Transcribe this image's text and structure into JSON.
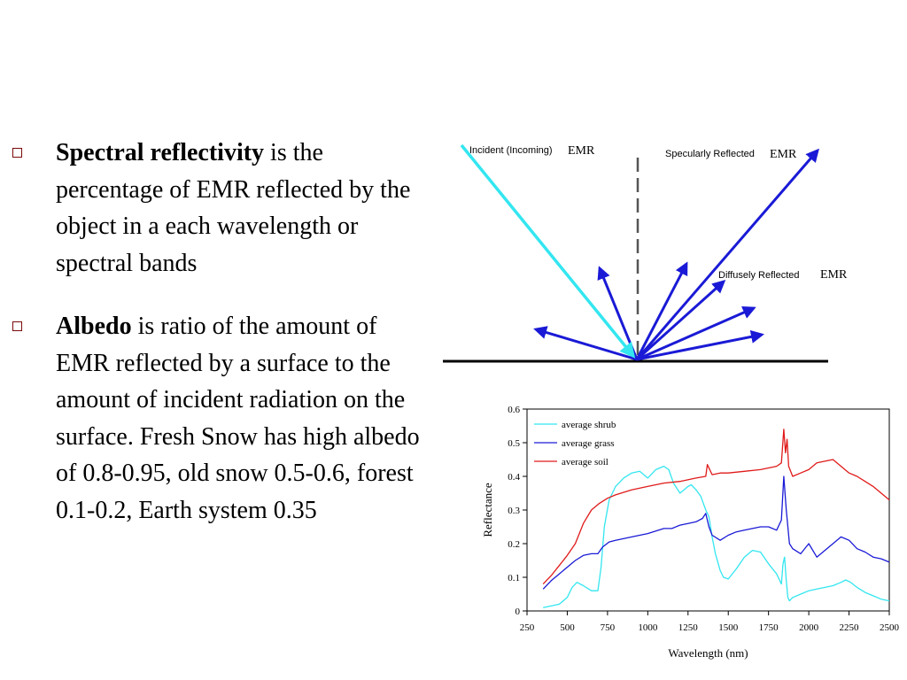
{
  "bullets": [
    {
      "term": "Spectral reflectivity",
      "text": " is the percentage of EMR reflected by the object in a each wavelength or spectral bands"
    },
    {
      "term": "Albedo",
      "text": " is ratio of the amount of EMR reflected by a surface to the amount of incident radiation on the surface. Fresh Snow has high albedo of 0.8-0.95, old snow 0.5-0.6, forest 0.1-0.2, Earth system 0.35"
    }
  ],
  "diagram": {
    "incident_label": "Incident (Incoming)",
    "specular_label": "Specularly Reflected",
    "diffuse_label": "Diffusely Reflected",
    "emr": "EMR",
    "colors": {
      "incident": "#33e6f0",
      "reflected": "#1a1ad6"
    }
  },
  "chart_data": {
    "type": "line",
    "xlabel": "Wavelength (nm)",
    "ylabel": "Reflectance",
    "xlim": [
      250,
      2500
    ],
    "ylim": [
      0,
      0.6
    ],
    "xticks": [
      250,
      500,
      750,
      1000,
      1250,
      1500,
      1750,
      2000,
      2250,
      2500
    ],
    "yticks": [
      0,
      0.1,
      0.2,
      0.3,
      0.4,
      0.5,
      0.6
    ],
    "ytick_labels": [
      "0",
      "0.1",
      "0.2",
      "0.3",
      "0.4",
      "0.5",
      "0.6"
    ],
    "legend_position": "top-left",
    "grid": false,
    "series": [
      {
        "name": "average shrub",
        "color": "#33e6f0",
        "x": [
          350,
          450,
          500,
          530,
          560,
          600,
          650,
          690,
          710,
          730,
          760,
          800,
          850,
          900,
          950,
          1000,
          1050,
          1100,
          1130,
          1160,
          1200,
          1250,
          1270,
          1300,
          1330,
          1360,
          1380,
          1400,
          1420,
          1450,
          1470,
          1500,
          1550,
          1600,
          1650,
          1700,
          1750,
          1800,
          1830,
          1840,
          1850,
          1860,
          1870,
          1880,
          1900,
          1950,
          2000,
          2050,
          2100,
          2150,
          2200,
          2230,
          2260,
          2300,
          2350,
          2400,
          2450,
          2500
        ],
        "y": [
          0.01,
          0.02,
          0.04,
          0.07,
          0.085,
          0.075,
          0.06,
          0.06,
          0.13,
          0.25,
          0.33,
          0.37,
          0.395,
          0.41,
          0.415,
          0.395,
          0.42,
          0.43,
          0.42,
          0.38,
          0.35,
          0.37,
          0.375,
          0.36,
          0.34,
          0.3,
          0.28,
          0.22,
          0.17,
          0.12,
          0.1,
          0.095,
          0.125,
          0.16,
          0.18,
          0.175,
          0.14,
          0.11,
          0.08,
          0.14,
          0.16,
          0.09,
          0.04,
          0.03,
          0.04,
          0.05,
          0.06,
          0.065,
          0.07,
          0.075,
          0.085,
          0.092,
          0.085,
          0.07,
          0.055,
          0.045,
          0.035,
          0.03
        ]
      },
      {
        "name": "average grass",
        "color": "#1a1ad6",
        "x": [
          350,
          400,
          450,
          500,
          550,
          600,
          650,
          690,
          720,
          760,
          800,
          900,
          1000,
          1100,
          1150,
          1200,
          1250,
          1300,
          1340,
          1360,
          1380,
          1400,
          1450,
          1500,
          1550,
          1600,
          1650,
          1700,
          1750,
          1800,
          1830,
          1845,
          1860,
          1880,
          1900,
          1950,
          2000,
          2050,
          2100,
          2150,
          2200,
          2250,
          2300,
          2350,
          2400,
          2450,
          2500
        ],
        "y": [
          0.065,
          0.09,
          0.11,
          0.13,
          0.15,
          0.165,
          0.17,
          0.17,
          0.19,
          0.205,
          0.21,
          0.22,
          0.23,
          0.245,
          0.245,
          0.255,
          0.26,
          0.265,
          0.275,
          0.29,
          0.25,
          0.225,
          0.21,
          0.225,
          0.235,
          0.24,
          0.245,
          0.25,
          0.25,
          0.24,
          0.27,
          0.4,
          0.3,
          0.2,
          0.185,
          0.17,
          0.2,
          0.16,
          0.18,
          0.2,
          0.22,
          0.21,
          0.185,
          0.175,
          0.16,
          0.155,
          0.145
        ]
      },
      {
        "name": "average soil",
        "color": "#e01a1a",
        "x": [
          350,
          400,
          450,
          500,
          550,
          600,
          650,
          700,
          750,
          800,
          900,
          1000,
          1100,
          1200,
          1300,
          1360,
          1370,
          1400,
          1450,
          1500,
          1600,
          1700,
          1800,
          1830,
          1845,
          1855,
          1865,
          1875,
          1900,
          1950,
          2000,
          2050,
          2100,
          2150,
          2200,
          2250,
          2300,
          2350,
          2400,
          2450,
          2500
        ],
        "y": [
          0.08,
          0.105,
          0.135,
          0.165,
          0.2,
          0.26,
          0.3,
          0.32,
          0.335,
          0.345,
          0.36,
          0.37,
          0.38,
          0.385,
          0.395,
          0.4,
          0.435,
          0.405,
          0.41,
          0.41,
          0.415,
          0.42,
          0.43,
          0.44,
          0.54,
          0.47,
          0.51,
          0.43,
          0.4,
          0.41,
          0.42,
          0.44,
          0.445,
          0.45,
          0.43,
          0.41,
          0.4,
          0.385,
          0.37,
          0.35,
          0.33
        ]
      }
    ]
  }
}
